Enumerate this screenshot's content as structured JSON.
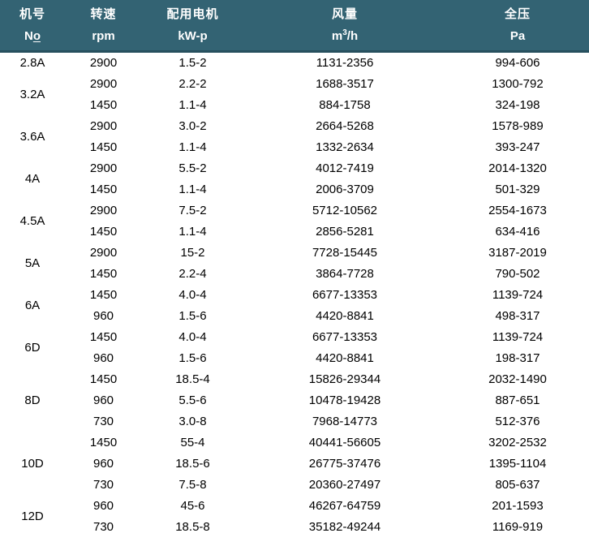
{
  "header": {
    "bg_color": "#336373",
    "divider_color": "#27505e",
    "text_color": "#ffffff",
    "columns": [
      {
        "zh": "机号",
        "en_main": "N",
        "en_underlined": "o"
      },
      {
        "zh": "转速",
        "en": "rpm"
      },
      {
        "zh": "配用电机",
        "en": "kW-p"
      },
      {
        "zh": "风量",
        "en_pre": "m",
        "en_sup": "3",
        "en_post": "/h"
      },
      {
        "zh": "全压",
        "en": "Pa"
      }
    ]
  },
  "chart_data": {
    "type": "table",
    "title": "",
    "columns": [
      "机号 No",
      "转速 rpm",
      "配用电机 kW-p",
      "风量 m3/h",
      "全压 Pa"
    ],
    "groups": [
      {
        "model": "2.8A",
        "rows": [
          [
            "2900",
            "1.5-2",
            "1131-2356",
            "994-606"
          ]
        ]
      },
      {
        "model": "3.2A",
        "rows": [
          [
            "2900",
            "2.2-2",
            "1688-3517",
            "1300-792"
          ],
          [
            "1450",
            "1.1-4",
            "884-1758",
            "324-198"
          ]
        ]
      },
      {
        "model": "3.6A",
        "rows": [
          [
            "2900",
            "3.0-2",
            "2664-5268",
            "1578-989"
          ],
          [
            "1450",
            "1.1-4",
            "1332-2634",
            "393-247"
          ]
        ]
      },
      {
        "model": "4A",
        "rows": [
          [
            "2900",
            "5.5-2",
            "4012-7419",
            "2014-1320"
          ],
          [
            "1450",
            "1.1-4",
            "2006-3709",
            "501-329"
          ]
        ]
      },
      {
        "model": "4.5A",
        "rows": [
          [
            "2900",
            "7.5-2",
            "5712-10562",
            "2554-1673"
          ],
          [
            "1450",
            "1.1-4",
            "2856-5281",
            "634-416"
          ]
        ]
      },
      {
        "model": "5A",
        "rows": [
          [
            "2900",
            "15-2",
            "7728-15445",
            "3187-2019"
          ],
          [
            "1450",
            "2.2-4",
            "3864-7728",
            "790-502"
          ]
        ]
      },
      {
        "model": "6A",
        "rows": [
          [
            "1450",
            "4.0-4",
            "6677-13353",
            "1139-724"
          ],
          [
            "960",
            "1.5-6",
            "4420-8841",
            "498-317"
          ]
        ]
      },
      {
        "model": "6D",
        "rows": [
          [
            "1450",
            "4.0-4",
            "6677-13353",
            "1139-724"
          ],
          [
            "960",
            "1.5-6",
            "4420-8841",
            "198-317"
          ]
        ]
      },
      {
        "model": "8D",
        "rows": [
          [
            "1450",
            "18.5-4",
            "15826-29344",
            "2032-1490"
          ],
          [
            "960",
            "5.5-6",
            "10478-19428",
            "887-651"
          ],
          [
            "730",
            "3.0-8",
            "7968-14773",
            "512-376"
          ]
        ]
      },
      {
        "model": "10D",
        "rows": [
          [
            "1450",
            "55-4",
            "40441-56605",
            "3202-2532"
          ],
          [
            "960",
            "18.5-6",
            "26775-37476",
            "1395-1104"
          ],
          [
            "730",
            "7.5-8",
            "20360-27497",
            "805-637"
          ]
        ]
      },
      {
        "model": "12D",
        "rows": [
          [
            "960",
            "45-6",
            "46267-64759",
            "201-1593"
          ],
          [
            "730",
            "18.5-8",
            "35182-49244",
            "1169-919"
          ]
        ]
      }
    ]
  }
}
